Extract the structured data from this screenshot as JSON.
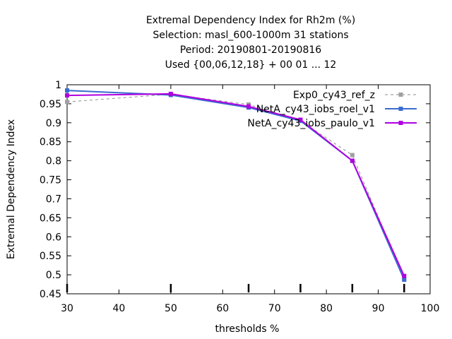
{
  "chart_data": {
    "type": "line",
    "title_lines": [
      "Extremal Dependency Index  for Rh2m (%)",
      "Selection: masl_600-1000m     31 stations",
      "Period: 20190801-20190816",
      "Used {00,06,12,18} + 00 01 ... 12"
    ],
    "xlabel": "thresholds %",
    "ylabel": "Extremal Dependency Index",
    "xlim": [
      30,
      100
    ],
    "ylim": [
      0.45,
      1
    ],
    "xticks": [
      30,
      40,
      50,
      60,
      70,
      80,
      90,
      100
    ],
    "yticks": [
      0.45,
      0.5,
      0.55,
      0.6,
      0.65,
      0.7,
      0.75,
      0.8,
      0.85,
      0.9,
      0.95,
      1
    ],
    "threshold_marks": [
      30,
      50,
      65,
      75,
      85,
      95
    ],
    "grid": false,
    "legend_position": "top-right",
    "series": [
      {
        "name": "Exp0_cy43_ref_z",
        "color": "#a0a0a0",
        "dash": "4,4",
        "marker": "square",
        "x": [
          30,
          50,
          65,
          75,
          85,
          95
        ],
        "y": [
          0.955,
          0.975,
          0.948,
          0.905,
          0.815,
          0.49
        ]
      },
      {
        "name": "NetA_cy43_iobs_roel_v1",
        "color": "#3a6bd0",
        "dash": "",
        "marker": "square",
        "x": [
          30,
          50,
          65,
          75,
          85,
          95
        ],
        "y": [
          0.985,
          0.973,
          0.94,
          0.905,
          0.8,
          0.487
        ]
      },
      {
        "name": "NetA_cy43_iobs_paulo_v1",
        "color": "#b000e0",
        "dash": "",
        "marker": "square",
        "x": [
          30,
          50,
          65,
          75,
          85,
          95
        ],
        "y": [
          0.972,
          0.976,
          0.943,
          0.908,
          0.8,
          0.497
        ]
      }
    ]
  }
}
